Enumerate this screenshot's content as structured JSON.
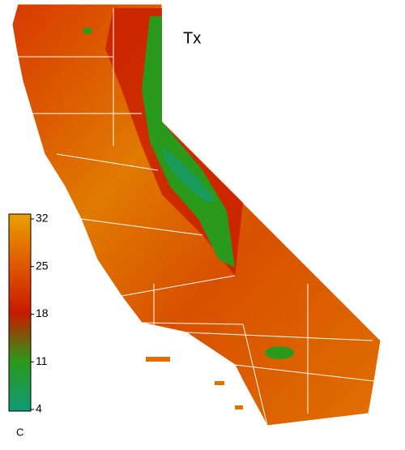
{
  "title": "Tx",
  "colorbar": {
    "label": "C",
    "range": [
      4,
      32
    ],
    "ticks": [
      32,
      25,
      18,
      11,
      4
    ],
    "colors": [
      "#0f9a78",
      "#2a9a1c",
      "#c81a00",
      "#e05a00",
      "#e8a000"
    ]
  }
}
